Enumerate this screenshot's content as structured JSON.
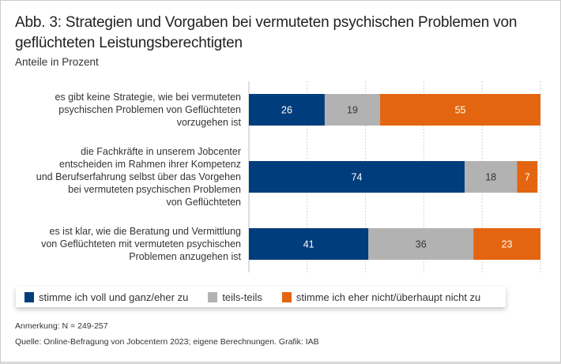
{
  "header": {
    "title": "Abb. 3: Strategien und Vorgaben bei vermuteten psychischen Problemen von geflüchteten Leistungsberechtigten",
    "subtitle": "Anteile in Prozent"
  },
  "chart_data": {
    "type": "bar",
    "orientation": "horizontal",
    "stacked": true,
    "title": "Abb. 3: Strategien und Vorgaben bei vermuteten psychischen Problemen von geflüchteten Leistungsberechtigten",
    "subtitle": "Anteile in Prozent",
    "xlabel": "",
    "ylabel": "",
    "xlim": [
      0,
      100
    ],
    "grid": true,
    "grid_ticks": [
      20,
      40,
      60,
      80,
      100
    ],
    "legend_position": "bottom",
    "categories": [
      "es gibt keine Strategie, wie bei vermuteten psychischen Problemen von Geflüchteten vorzugehen ist",
      "die Fachkräfte in unserem Jobcenter entscheiden im Rahmen ihrer Kompetenz und Berufserfahrung selbst über das Vorgehen bei vermuteten psychischen Problemen von Geflüchteten",
      "es ist klar, wie die Beratung und Vermittlung von Geflüchteten mit vermuteten psychischen Problemen anzugehen ist"
    ],
    "category_lines": [
      [
        "es gibt keine Strategie, wie bei vermuteten",
        "psychischen Problemen von Geflüchteten",
        "vorzugehen ist"
      ],
      [
        "die Fachkräfte in unserem Jobcenter",
        "entscheiden im Rahmen ihrer Kompetenz",
        "und Berufserfahrung selbst über das Vorgehen",
        "bei vermuteten psychischen Problemen",
        "von Geflüchteten"
      ],
      [
        "es ist klar, wie die Beratung und Vermittlung",
        "von Geflüchteten mit vermuteten psychischen",
        "Problemen anzugehen ist"
      ]
    ],
    "series": [
      {
        "name": "stimme ich voll und ganz/eher zu",
        "color": "#003d7c",
        "label_color": "#ffffff",
        "values": [
          26,
          74,
          41
        ]
      },
      {
        "name": "teils-teils",
        "color": "#b2b2b2",
        "label_color": "#333333",
        "values": [
          19,
          18,
          36
        ]
      },
      {
        "name": "stimme ich eher nicht/überhaupt nicht zu",
        "color": "#e3650f",
        "label_color": "#ffffff",
        "values": [
          55,
          7,
          23
        ]
      }
    ]
  },
  "footer": {
    "note": "Anmerkung: N = 249-257",
    "source": "Quelle: Online-Befragung von Jobcentern 2023; eigene Berechnungen. Grafik: IAB"
  }
}
